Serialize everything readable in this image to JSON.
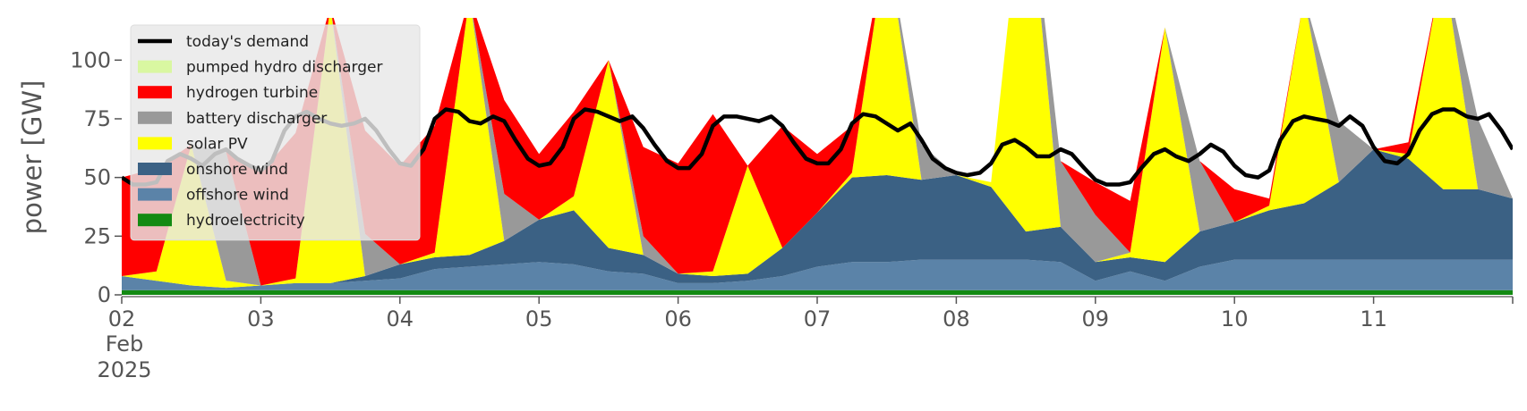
{
  "chart_data": {
    "type": "area",
    "title": "",
    "xlabel": "",
    "ylabel": "power [GW]",
    "x_ticks": [
      "02",
      "03",
      "04",
      "05",
      "06",
      "07",
      "08",
      "09",
      "10",
      "11"
    ],
    "x_tick_sublabels": [
      "Feb",
      "2025"
    ],
    "y_ticks": [
      0,
      25,
      50,
      75,
      100
    ],
    "ylim": [
      0,
      118
    ],
    "x_range_days": [
      2,
      12
    ],
    "grid": false,
    "legend_position": "upper-left",
    "x_days": [
      2.0,
      2.25,
      2.5,
      2.75,
      3.0,
      3.25,
      3.5,
      3.75,
      4.0,
      4.25,
      4.5,
      4.75,
      5.0,
      5.25,
      5.5,
      5.75,
      6.0,
      6.25,
      6.5,
      6.75,
      7.0,
      7.25,
      7.5,
      7.75,
      8.0,
      8.25,
      8.5,
      8.75,
      9.0,
      9.25,
      9.5,
      9.75,
      10.0,
      10.25,
      10.5,
      10.75,
      11.0,
      11.25,
      11.5,
      11.75,
      12.0
    ],
    "stack_series": [
      {
        "name": "hydroelectricity",
        "color": "#138a13",
        "values": [
          2,
          2,
          2,
          2,
          2,
          2,
          2,
          2,
          2,
          2,
          2,
          2,
          2,
          2,
          2,
          2,
          2,
          2,
          2,
          2,
          2,
          2,
          2,
          2,
          2,
          2,
          2,
          2,
          2,
          2,
          2,
          2,
          2,
          2,
          2,
          2,
          2,
          2,
          2,
          2,
          2
        ]
      },
      {
        "name": "offshore wind",
        "color": "#5b83a8",
        "values": [
          6,
          4,
          2,
          1,
          2,
          3,
          3,
          4,
          5,
          9,
          10,
          11,
          12,
          11,
          8,
          7,
          3,
          3,
          4,
          6,
          10,
          12,
          12,
          13,
          13,
          13,
          13,
          12,
          4,
          8,
          4,
          10,
          13,
          13,
          13,
          13,
          13,
          13,
          13,
          13,
          13
        ]
      },
      {
        "name": "onshore wind",
        "color": "#3b6184",
        "values": [
          0,
          0,
          0,
          0,
          0,
          0,
          0,
          2,
          6,
          5,
          5,
          10,
          18,
          23,
          10,
          8,
          4,
          3,
          3,
          12,
          23,
          36,
          37,
          34,
          36,
          31,
          12,
          15,
          8,
          6,
          8,
          15,
          16,
          21,
          24,
          33,
          47,
          43,
          30,
          30,
          26
        ]
      },
      {
        "name": "solar PV",
        "color": "#ffff00",
        "values": [
          0,
          4,
          60,
          3,
          0,
          2,
          118,
          0,
          0,
          2,
          110,
          0,
          0,
          6,
          80,
          0,
          0,
          2,
          46,
          0,
          0,
          2,
          100,
          0,
          0,
          2,
          160,
          0,
          0,
          2,
          100,
          0,
          0,
          2,
          88,
          0,
          0,
          2,
          96,
          0,
          0
        ]
      },
      {
        "name": "battery discharger",
        "color": "#999999",
        "values": [
          0,
          0,
          0,
          55,
          0,
          0,
          0,
          18,
          0,
          0,
          0,
          20,
          0,
          0,
          0,
          8,
          0,
          0,
          0,
          0,
          0,
          0,
          0,
          15,
          0,
          0,
          0,
          28,
          20,
          0,
          0,
          30,
          0,
          0,
          0,
          26,
          0,
          0,
          0,
          30,
          0
        ]
      },
      {
        "name": "hydrogen turbine",
        "color": "#ff0000",
        "values": [
          42,
          44,
          0,
          0,
          48,
          62,
          0,
          44,
          42,
          54,
          0,
          40,
          28,
          36,
          0,
          38,
          47,
          67,
          0,
          52,
          25,
          20,
          0,
          0,
          0,
          0,
          0,
          0,
          14,
          22,
          0,
          0,
          14,
          3,
          0,
          0,
          0,
          5,
          0,
          0,
          0
        ]
      },
      {
        "name": "pumped hydro discharger",
        "color": "#d9f7a1",
        "values": [
          0,
          0,
          0,
          0,
          0,
          0,
          0,
          0,
          0,
          0,
          0,
          0,
          0,
          0,
          0,
          0,
          0,
          0,
          0,
          0,
          0,
          0,
          0,
          0,
          0,
          0,
          0,
          0,
          0,
          0,
          0,
          0,
          0,
          0,
          0,
          0,
          0,
          0,
          0,
          0,
          0
        ]
      }
    ],
    "demand_series": {
      "name": "today's demand",
      "color": "#000000",
      "x_days": [
        2.0,
        2.08,
        2.17,
        2.25,
        2.33,
        2.42,
        2.5,
        2.58,
        2.67,
        2.75,
        2.83,
        2.92,
        3.0,
        3.08,
        3.17,
        3.25,
        3.33,
        3.42,
        3.5,
        3.58,
        3.67,
        3.75,
        3.83,
        3.92,
        4.0,
        4.08,
        4.17,
        4.25,
        4.33,
        4.42,
        4.5,
        4.58,
        4.67,
        4.75,
        4.83,
        4.92,
        5.0,
        5.08,
        5.17,
        5.25,
        5.33,
        5.42,
        5.5,
        5.58,
        5.67,
        5.75,
        5.83,
        5.92,
        6.0,
        6.08,
        6.17,
        6.25,
        6.33,
        6.42,
        6.5,
        6.58,
        6.67,
        6.75,
        6.83,
        6.92,
        7.0,
        7.08,
        7.17,
        7.25,
        7.33,
        7.42,
        7.5,
        7.58,
        7.67,
        7.75,
        7.83,
        7.92,
        8.0,
        8.08,
        8.17,
        8.25,
        8.33,
        8.42,
        8.5,
        8.58,
        8.67,
        8.75,
        8.83,
        8.92,
        9.0,
        9.08,
        9.17,
        9.25,
        9.33,
        9.42,
        9.5,
        9.58,
        9.67,
        9.75,
        9.83,
        9.92,
        10.0,
        10.08,
        10.17,
        10.25,
        10.33,
        10.42,
        10.5,
        10.58,
        10.67,
        10.75,
        10.83,
        10.92,
        11.0,
        11.08,
        11.17,
        11.25,
        11.33,
        11.42,
        11.5,
        11.58,
        11.67,
        11.75,
        11.83,
        11.92,
        12.0
      ],
      "values": [
        50,
        47,
        47,
        48,
        57,
        60,
        58,
        55,
        60,
        62,
        58,
        55,
        53,
        57,
        70,
        76,
        78,
        75,
        73,
        72,
        73,
        75,
        70,
        62,
        56,
        55,
        62,
        75,
        79,
        78,
        74,
        73,
        76,
        74,
        66,
        58,
        55,
        56,
        63,
        75,
        79,
        78,
        76,
        74,
        76,
        71,
        64,
        57,
        54,
        54,
        60,
        72,
        76,
        76,
        75,
        74,
        76,
        72,
        65,
        58,
        56,
        56,
        62,
        73,
        77,
        76,
        73,
        70,
        73,
        66,
        58,
        54,
        52,
        51,
        52,
        56,
        64,
        66,
        63,
        59,
        59,
        62,
        60,
        54,
        49,
        47,
        47,
        48,
        54,
        60,
        62,
        59,
        57,
        60,
        64,
        61,
        55,
        51,
        50,
        53,
        66,
        74,
        76,
        75,
        74,
        72,
        76,
        72,
        63,
        57,
        56,
        60,
        70,
        77,
        79,
        79,
        76,
        75,
        77,
        70,
        62
      ]
    },
    "legend_entries": [
      {
        "label": "today's demand",
        "color": "#000000",
        "kind": "line"
      },
      {
        "label": "pumped hydro discharger",
        "color": "#d9f7a1",
        "kind": "patch"
      },
      {
        "label": "hydrogen turbine",
        "color": "#ff0000",
        "kind": "patch"
      },
      {
        "label": "battery discharger",
        "color": "#999999",
        "kind": "patch"
      },
      {
        "label": "solar PV",
        "color": "#ffff00",
        "kind": "patch"
      },
      {
        "label": "onshore wind",
        "color": "#3b6184",
        "kind": "patch"
      },
      {
        "label": "offshore wind",
        "color": "#5b83a8",
        "kind": "patch"
      },
      {
        "label": "hydroelectricity",
        "color": "#138a13",
        "kind": "patch"
      }
    ]
  }
}
